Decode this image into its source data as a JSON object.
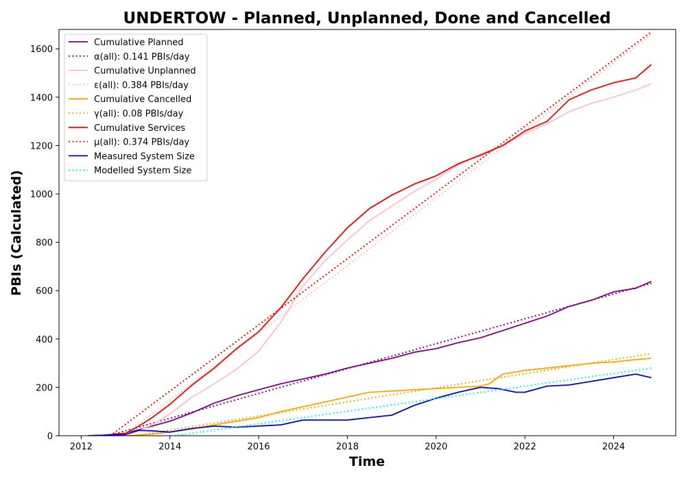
{
  "chart_data": {
    "type": "line",
    "title": "UNDERTOW - Planned, Unplanned, Done  and Cancelled",
    "xlabel": "Time",
    "ylabel": "PBIs (Calculated)",
    "xlim": [
      2011.5,
      2025.4
    ],
    "ylim": [
      0,
      1680
    ],
    "xticks": [
      2012,
      2014,
      2016,
      2018,
      2020,
      2022,
      2024
    ],
    "yticks": [
      0,
      200,
      400,
      600,
      800,
      1000,
      1200,
      1400,
      1600
    ],
    "grid": false,
    "legend_position": "top-left",
    "series": [
      {
        "name": "Cumulative Planned",
        "color": "#800080",
        "style": "solid",
        "x": [
          2012.15,
          2012.5,
          2013.0,
          2013.3,
          2013.6,
          2014.0,
          2014.5,
          2015.0,
          2015.5,
          2016.0,
          2016.5,
          2017.0,
          2017.5,
          2018.0,
          2018.5,
          2019.0,
          2019.5,
          2020.0,
          2020.5,
          2021.0,
          2021.5,
          2022.0,
          2022.5,
          2023.0,
          2023.5,
          2024.0,
          2024.5,
          2024.85
        ],
        "y": [
          0,
          2,
          10,
          25,
          40,
          60,
          95,
          135,
          165,
          190,
          215,
          235,
          255,
          280,
          300,
          320,
          345,
          360,
          385,
          405,
          435,
          465,
          495,
          535,
          560,
          595,
          610,
          638
        ]
      },
      {
        "name": "α(all): 0.141 PBIs/day",
        "color": "#800080",
        "style": "dotted",
        "x": [
          2012.6,
          2024.85
        ],
        "y": [
          0,
          630
        ]
      },
      {
        "name": "Cumulative Unplanned",
        "color": "#ffc0cb",
        "style": "solid",
        "x": [
          2012.15,
          2012.5,
          2013.0,
          2013.3,
          2013.6,
          2014.0,
          2014.5,
          2015.0,
          2015.5,
          2016.0,
          2016.5,
          2017.0,
          2017.5,
          2018.0,
          2018.5,
          2019.0,
          2019.5,
          2020.0,
          2020.5,
          2021.0,
          2021.5,
          2022.0,
          2022.5,
          2023.0,
          2023.5,
          2024.0,
          2024.5,
          2024.85
        ],
        "y": [
          0,
          2,
          8,
          20,
          45,
          90,
          160,
          215,
          275,
          350,
          470,
          620,
          725,
          810,
          890,
          950,
          1010,
          1060,
          1120,
          1165,
          1200,
          1250,
          1290,
          1340,
          1375,
          1400,
          1430,
          1455
        ]
      },
      {
        "name": "ε(all): 0.384 PBIs/day",
        "color": "#ffc0cb",
        "style": "dotted",
        "x": [
          2012.95,
          2024.85
        ],
        "y": [
          0,
          1660
        ]
      },
      {
        "name": "Cumulative Cancelled",
        "color": "#ffa500",
        "style": "solid",
        "x": [
          2012.15,
          2013.0,
          2013.5,
          2014.0,
          2014.5,
          2015.0,
          2015.5,
          2016.0,
          2016.5,
          2017.0,
          2017.5,
          2018.0,
          2018.5,
          2019.0,
          2019.5,
          2020.0,
          2020.5,
          2021.0,
          2021.2,
          2021.5,
          2022.0,
          2022.5,
          2023.0,
          2023.5,
          2024.0,
          2024.5,
          2024.85
        ],
        "y": [
          0,
          0,
          5,
          15,
          28,
          45,
          60,
          75,
          100,
          120,
          140,
          160,
          180,
          185,
          190,
          195,
          200,
          205,
          215,
          255,
          270,
          280,
          290,
          300,
          305,
          315,
          320
        ]
      },
      {
        "name": "γ(all): 0.08 PBIs/day",
        "color": "#ffa500",
        "style": "dotted",
        "x": [
          2013.2,
          2024.85
        ],
        "y": [
          0,
          340
        ]
      },
      {
        "name": "Cumulative Services",
        "color": "#ff0000",
        "style": "solid",
        "x": [
          2012.15,
          2012.5,
          2013.0,
          2013.3,
          2013.6,
          2014.0,
          2014.5,
          2015.0,
          2015.5,
          2016.0,
          2016.5,
          2017.0,
          2017.5,
          2018.0,
          2018.5,
          2019.0,
          2019.5,
          2020.0,
          2020.5,
          2021.0,
          2021.5,
          2022.0,
          2022.5,
          2023.0,
          2023.5,
          2024.0,
          2024.5,
          2024.85
        ],
        "y": [
          0,
          2,
          10,
          40,
          75,
          130,
          210,
          280,
          360,
          430,
          530,
          650,
          760,
          860,
          940,
          995,
          1040,
          1075,
          1125,
          1160,
          1200,
          1260,
          1300,
          1390,
          1430,
          1460,
          1480,
          1535
        ]
      },
      {
        "name": "μ(all): 0.374 PBIs/day",
        "color": "#ff0000",
        "style": "dotted",
        "x": [
          2012.65,
          2024.85
        ],
        "y": [
          0,
          1670
        ]
      },
      {
        "name": "Measured System Size",
        "color": "#0000cd",
        "style": "solid",
        "x": [
          2012.15,
          2013.0,
          2013.3,
          2013.6,
          2014.0,
          2014.5,
          2015.0,
          2015.5,
          2016.0,
          2016.5,
          2017.0,
          2017.5,
          2018.0,
          2018.5,
          2019.0,
          2019.5,
          2020.0,
          2020.5,
          2021.0,
          2021.4,
          2021.8,
          2022.0,
          2022.5,
          2023.0,
          2023.5,
          2024.0,
          2024.5,
          2024.85
        ],
        "y": [
          0,
          5,
          22,
          20,
          15,
          30,
          40,
          35,
          40,
          45,
          65,
          65,
          65,
          75,
          85,
          125,
          155,
          180,
          200,
          195,
          180,
          180,
          205,
          210,
          225,
          240,
          255,
          240
        ]
      },
      {
        "name": "Modelled System Size",
        "color": "#00ffff",
        "style": "dotted",
        "x": [
          2014.1,
          2024.85
        ],
        "y": [
          0,
          280
        ]
      }
    ]
  }
}
